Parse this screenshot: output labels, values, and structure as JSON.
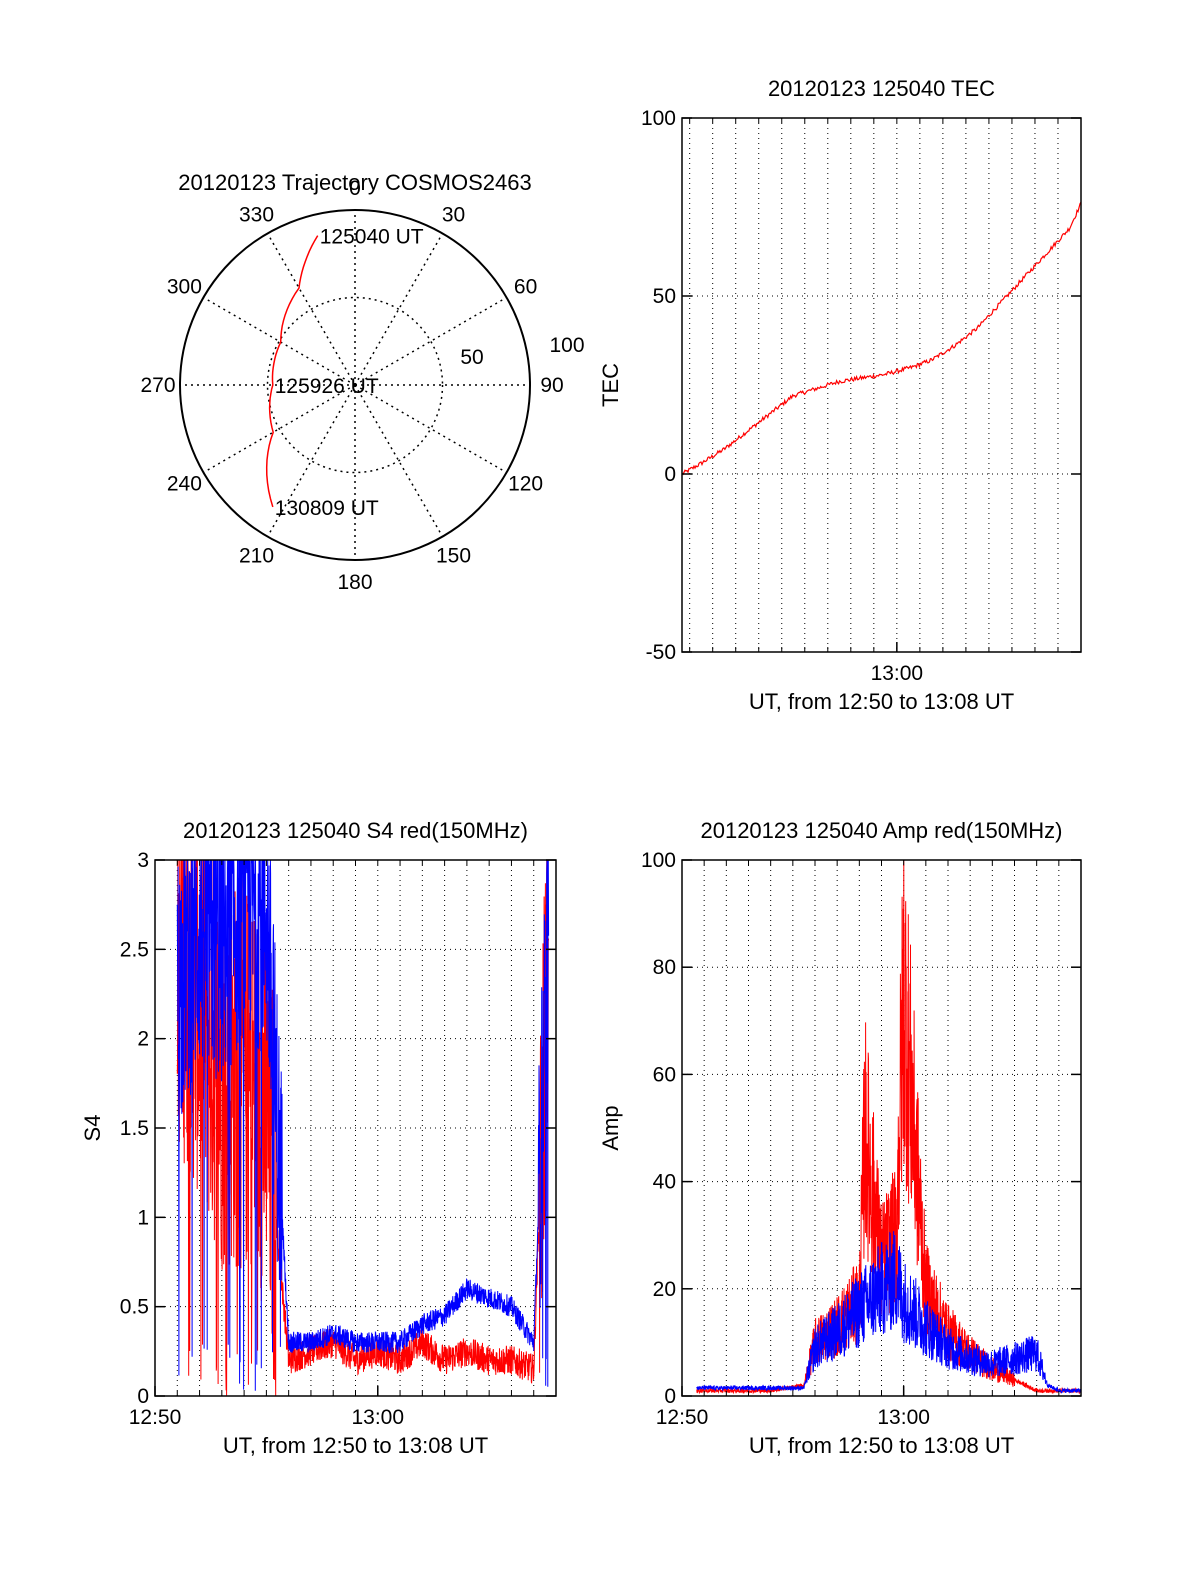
{
  "chart_data": [
    {
      "type": "polar",
      "title": "20120123 Trajectory COSMOS2463",
      "angle_labels": [
        "0",
        "30",
        "60",
        "90",
        "120",
        "150",
        "180",
        "210",
        "240",
        "270",
        "300",
        "330"
      ],
      "radial_labels": [
        "50",
        "100"
      ],
      "rlim": [
        0,
        100
      ],
      "angular_spokes_deg": [
        0,
        30,
        60,
        90,
        120,
        150,
        180,
        210,
        240,
        270,
        300,
        330
      ],
      "grid": true,
      "series": [
        {
          "color": "#ff0000",
          "points": [
            {
              "azimuth": 346,
              "zenith": 88
            },
            {
              "azimuth": 330,
              "zenith": 64
            },
            {
              "azimuth": 300,
              "zenith": 49
            },
            {
              "azimuth": 270,
              "zenith": 47
            },
            {
              "azimuth": 240,
              "zenith": 54
            },
            {
              "azimuth": 214,
              "zenith": 84
            }
          ]
        }
      ],
      "annotations": [
        {
          "text": "125040 UT",
          "azimuth": 346,
          "zenith": 88
        },
        {
          "text": "125926 UT",
          "azimuth": 270,
          "zenith": 47
        },
        {
          "text": "130809 UT",
          "azimuth": 214,
          "zenith": 84
        }
      ]
    },
    {
      "type": "line",
      "title": "20120123 125040 TEC",
      "xlabel": "UT, from 12:50 to 13:08 UT",
      "ylabel": "TEC",
      "xlim": [
        "12:50:40",
        "13:08:00"
      ],
      "ylim": [
        -50,
        100
      ],
      "xticks": [
        "13:00"
      ],
      "yticks": [
        -50,
        0,
        50,
        100
      ],
      "grid": true,
      "series": [
        {
          "color": "#ff0000",
          "x": [
            "12:50:40",
            "12:51:30",
            "12:52:30",
            "12:53:30",
            "12:54:30",
            "12:55:30",
            "12:56:30",
            "12:57:30",
            "12:58:30",
            "12:59:30",
            "13:00:40",
            "13:01:30",
            "13:02:30",
            "13:03:30",
            "13:04:30",
            "13:05:30",
            "13:06:30",
            "13:07:30",
            "13:08:00"
          ],
          "y": [
            0,
            3,
            7,
            12,
            17,
            22,
            24,
            26,
            27,
            28,
            30,
            32,
            36,
            41,
            48,
            55,
            62,
            69,
            76
          ]
        }
      ]
    },
    {
      "type": "line",
      "title": "20120123 125040 S4 red(150MHz)",
      "xlabel": "UT, from 12:50 to 13:08 UT",
      "ylabel": "S4",
      "xlim": [
        "12:50:00",
        "13:08:00"
      ],
      "ylim": [
        0,
        3
      ],
      "xticks": [
        "12:50",
        "13:00"
      ],
      "yticks": [
        0,
        0.5,
        1,
        1.5,
        2,
        2.5,
        3
      ],
      "grid": true,
      "series": [
        {
          "color": "#ff0000",
          "x": [
            "12:51:00",
            "12:52:00",
            "12:53:00",
            "12:54:00",
            "12:55:00",
            "12:56:00",
            "12:57:00",
            "12:58:00",
            "12:59:00",
            "13:00:00",
            "13:01:00",
            "13:02:00",
            "13:03:00",
            "13:04:00",
            "13:05:00",
            "13:06:00",
            "13:07:00",
            "13:07:40"
          ],
          "y": [
            2.5,
            2.2,
            1.8,
            1.8,
            1.6,
            0.2,
            0.25,
            0.3,
            0.2,
            0.25,
            0.2,
            0.3,
            0.2,
            0.25,
            0.2,
            0.2,
            0.15,
            2.5
          ]
        },
        {
          "color": "#0000ff",
          "x": [
            "12:51:00",
            "12:52:00",
            "12:53:00",
            "12:54:00",
            "12:55:00",
            "12:56:00",
            "12:57:00",
            "12:58:00",
            "12:59:00",
            "13:00:00",
            "13:01:00",
            "13:02:00",
            "13:03:00",
            "13:04:00",
            "13:05:00",
            "13:06:00",
            "13:07:00",
            "13:07:40"
          ],
          "y": [
            2.3,
            2.6,
            2.5,
            2.8,
            2.7,
            0.3,
            0.3,
            0.35,
            0.3,
            0.3,
            0.3,
            0.4,
            0.45,
            0.6,
            0.55,
            0.5,
            0.3,
            2.6
          ]
        }
      ]
    },
    {
      "type": "line",
      "title": "20120123 125040 Amp red(150MHz)",
      "xlabel": "UT, from 12:50 to 13:08 UT",
      "ylabel": "Amp",
      "xlim": [
        "12:50:00",
        "13:08:00"
      ],
      "ylim": [
        0,
        100
      ],
      "xticks": [
        "12:50",
        "13:00"
      ],
      "yticks": [
        0,
        20,
        40,
        60,
        80,
        100
      ],
      "grid": true,
      "series": [
        {
          "color": "#ff0000",
          "x": [
            "12:50:40",
            "12:52:00",
            "12:54:00",
            "12:55:30",
            "12:56:00",
            "12:57:00",
            "12:58:00",
            "12:58:15",
            "12:59:00",
            "12:59:40",
            "13:00:00",
            "13:01:00",
            "13:02:00",
            "13:03:00",
            "13:04:00",
            "13:05:00",
            "13:06:00",
            "13:07:00",
            "13:08:00"
          ],
          "y": [
            1,
            1,
            1,
            2,
            10,
            13,
            18,
            50,
            25,
            30,
            76,
            20,
            12,
            8,
            5,
            3,
            1,
            1,
            1
          ]
        },
        {
          "color": "#0000ff",
          "x": [
            "12:50:40",
            "12:52:00",
            "12:54:00",
            "12:55:30",
            "12:56:00",
            "12:57:00",
            "12:58:00",
            "12:59:00",
            "12:59:40",
            "13:00:00",
            "13:01:00",
            "13:02:00",
            "13:03:00",
            "13:04:00",
            "13:05:00",
            "13:06:00",
            "13:06:30",
            "13:07:00",
            "13:08:00"
          ],
          "y": [
            1.5,
            1.5,
            1.5,
            1.5,
            9,
            12,
            16,
            20,
            22,
            18,
            13,
            9,
            7,
            6,
            7,
            8,
            2,
            1,
            1
          ]
        }
      ]
    }
  ]
}
